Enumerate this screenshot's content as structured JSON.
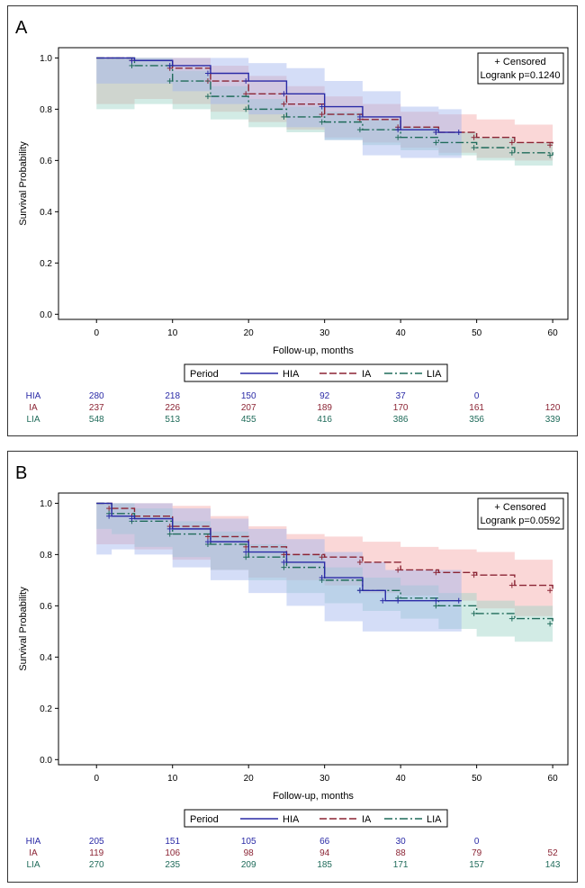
{
  "colors": {
    "HIA": "#2a2aa6",
    "IA": "#8b2434",
    "LIA": "#1f6b5a",
    "HIA_band": "#9fb3ee",
    "IA_band": "#f3a7a7",
    "LIA_band": "#9bd3c6"
  },
  "chart_data": [
    {
      "type": "line",
      "panel_label": "A",
      "xlabel": "Follow-up, months",
      "ylabel": "Survival Probability",
      "xlim": [
        -5,
        62
      ],
      "ylim": [
        -0.02,
        1.04
      ],
      "x_ticks": [
        "0",
        "10",
        "20",
        "30",
        "40",
        "50",
        "60"
      ],
      "y_ticks": [
        "0.0",
        "0.2",
        "0.4",
        "0.6",
        "0.8",
        "1.0"
      ],
      "x_tick_values": [
        0,
        10,
        20,
        30,
        40,
        50,
        60
      ],
      "y_tick_values": [
        0,
        0.2,
        0.4,
        0.6,
        0.8,
        1.0
      ],
      "inset_legend": {
        "censored": "+ Censored",
        "logrank": "Logrank p=0.1240"
      },
      "legend": {
        "title": "Period",
        "entries": [
          "HIA",
          "IA",
          "LIA"
        ]
      },
      "series": [
        {
          "name": "HIA",
          "x": [
            0,
            5,
            10,
            15,
            20,
            25,
            30,
            35,
            40,
            45,
            48
          ],
          "y": [
            1.0,
            0.99,
            0.97,
            0.94,
            0.91,
            0.86,
            0.81,
            0.77,
            0.72,
            0.71,
            0.71
          ],
          "band_x": [
            0,
            5,
            10,
            15,
            20,
            25,
            30,
            35,
            40,
            45,
            48
          ],
          "band_lo": [
            0.87,
            0.9,
            0.9,
            0.87,
            0.82,
            0.78,
            0.73,
            0.68,
            0.62,
            0.61,
            0.61
          ],
          "band_hi": [
            1.0,
            1.0,
            1.0,
            1.0,
            0.98,
            0.96,
            0.91,
            0.87,
            0.81,
            0.8,
            0.8
          ]
        },
        {
          "name": "IA",
          "x": [
            0,
            5,
            10,
            15,
            20,
            25,
            30,
            35,
            40,
            45,
            50,
            55,
            60
          ],
          "y": [
            1.0,
            0.99,
            0.96,
            0.91,
            0.86,
            0.82,
            0.78,
            0.76,
            0.73,
            0.71,
            0.69,
            0.67,
            0.66
          ],
          "band_x": [
            0,
            5,
            10,
            15,
            20,
            25,
            30,
            35,
            40,
            45,
            50,
            55,
            60
          ],
          "band_lo": [
            0.8,
            0.82,
            0.84,
            0.82,
            0.79,
            0.75,
            0.72,
            0.69,
            0.67,
            0.65,
            0.63,
            0.61,
            0.6
          ],
          "band_hi": [
            1.0,
            1.0,
            1.0,
            0.97,
            0.93,
            0.89,
            0.85,
            0.82,
            0.79,
            0.78,
            0.76,
            0.74,
            0.73
          ]
        },
        {
          "name": "LIA",
          "x": [
            0,
            5,
            10,
            15,
            20,
            25,
            30,
            35,
            40,
            45,
            50,
            55,
            60
          ],
          "y": [
            1.0,
            0.97,
            0.91,
            0.85,
            0.8,
            0.77,
            0.75,
            0.72,
            0.69,
            0.67,
            0.65,
            0.63,
            0.62
          ],
          "band_x": [
            0,
            5,
            10,
            15,
            20,
            25,
            30,
            35,
            40,
            45,
            50,
            55,
            60
          ],
          "band_lo": [
            0.79,
            0.8,
            0.82,
            0.8,
            0.76,
            0.73,
            0.71,
            0.68,
            0.66,
            0.64,
            0.62,
            0.6,
            0.58
          ],
          "band_hi": [
            1.0,
            1.0,
            0.95,
            0.89,
            0.84,
            0.81,
            0.79,
            0.76,
            0.73,
            0.71,
            0.69,
            0.67,
            0.66
          ]
        }
      ],
      "risk_table": [
        {
          "name": "HIA",
          "values": [
            "280",
            "218",
            "150",
            "92",
            "37",
            "0",
            ""
          ]
        },
        {
          "name": "IA",
          "values": [
            "237",
            "226",
            "207",
            "189",
            "170",
            "161",
            "120"
          ]
        },
        {
          "name": "LIA",
          "values": [
            "548",
            "513",
            "455",
            "416",
            "386",
            "356",
            "339"
          ]
        }
      ]
    },
    {
      "type": "line",
      "panel_label": "B",
      "xlabel": "Follow-up, months",
      "ylabel": "Survival Probability",
      "xlim": [
        -5,
        62
      ],
      "ylim": [
        -0.02,
        1.04
      ],
      "x_ticks": [
        "0",
        "10",
        "20",
        "30",
        "40",
        "50",
        "60"
      ],
      "y_ticks": [
        "0.0",
        "0.2",
        "0.4",
        "0.6",
        "0.8",
        "1.0"
      ],
      "x_tick_values": [
        0,
        10,
        20,
        30,
        40,
        50,
        60
      ],
      "y_tick_values": [
        0,
        0.2,
        0.4,
        0.6,
        0.8,
        1.0
      ],
      "inset_legend": {
        "censored": "+ Censored",
        "logrank": "Logrank p=0.0592"
      },
      "legend": {
        "title": "Period",
        "entries": [
          "HIA",
          "IA",
          "LIA"
        ]
      },
      "series": [
        {
          "name": "HIA",
          "x": [
            0,
            2,
            5,
            10,
            15,
            20,
            25,
            30,
            35,
            38,
            40,
            45,
            48
          ],
          "y": [
            1.0,
            0.95,
            0.94,
            0.9,
            0.85,
            0.81,
            0.77,
            0.71,
            0.66,
            0.62,
            0.62,
            0.62,
            0.62
          ],
          "band_x": [
            0,
            2,
            5,
            10,
            15,
            20,
            25,
            30,
            35,
            38,
            40,
            45,
            48
          ],
          "band_lo": [
            0.76,
            0.8,
            0.82,
            0.8,
            0.75,
            0.7,
            0.65,
            0.6,
            0.54,
            0.5,
            0.5,
            0.5,
            0.5
          ],
          "band_hi": [
            1.0,
            1.0,
            1.0,
            0.98,
            0.94,
            0.9,
            0.86,
            0.81,
            0.77,
            0.74,
            0.74,
            0.74,
            0.74
          ]
        },
        {
          "name": "IA",
          "x": [
            0,
            2,
            5,
            10,
            15,
            20,
            25,
            30,
            35,
            40,
            45,
            50,
            55,
            60
          ],
          "y": [
            1.0,
            0.98,
            0.95,
            0.91,
            0.87,
            0.83,
            0.8,
            0.79,
            0.77,
            0.74,
            0.73,
            0.72,
            0.68,
            0.66
          ],
          "band_x": [
            0,
            2,
            5,
            10,
            15,
            20,
            25,
            30,
            35,
            40,
            45,
            50,
            55,
            60
          ],
          "band_lo": [
            0.83,
            0.84,
            0.84,
            0.82,
            0.78,
            0.74,
            0.71,
            0.7,
            0.68,
            0.65,
            0.64,
            0.62,
            0.59,
            0.56
          ],
          "band_hi": [
            1.0,
            1.0,
            1.0,
            0.99,
            0.95,
            0.91,
            0.88,
            0.87,
            0.85,
            0.83,
            0.82,
            0.81,
            0.78,
            0.77
          ]
        },
        {
          "name": "LIA",
          "x": [
            0,
            2,
            5,
            10,
            15,
            20,
            25,
            30,
            35,
            40,
            45,
            50,
            55,
            60
          ],
          "y": [
            1.0,
            0.96,
            0.93,
            0.88,
            0.84,
            0.79,
            0.75,
            0.7,
            0.66,
            0.63,
            0.6,
            0.57,
            0.55,
            0.53
          ],
          "band_x": [
            0,
            2,
            5,
            10,
            15,
            20,
            25,
            30,
            35,
            40,
            45,
            50,
            55,
            60
          ],
          "band_lo": [
            0.94,
            0.9,
            0.88,
            0.83,
            0.79,
            0.74,
            0.7,
            0.65,
            0.61,
            0.58,
            0.55,
            0.51,
            0.48,
            0.46
          ],
          "band_hi": [
            1.0,
            1.0,
            0.98,
            0.93,
            0.89,
            0.84,
            0.8,
            0.75,
            0.71,
            0.68,
            0.65,
            0.62,
            0.6,
            0.58
          ]
        }
      ],
      "risk_table": [
        {
          "name": "HIA",
          "values": [
            "205",
            "151",
            "105",
            "66",
            "30",
            "0",
            ""
          ]
        },
        {
          "name": "IA",
          "values": [
            "119",
            "106",
            "98",
            "94",
            "88",
            "79",
            "52"
          ]
        },
        {
          "name": "LIA",
          "values": [
            "270",
            "235",
            "209",
            "185",
            "171",
            "157",
            "143"
          ]
        }
      ]
    }
  ]
}
